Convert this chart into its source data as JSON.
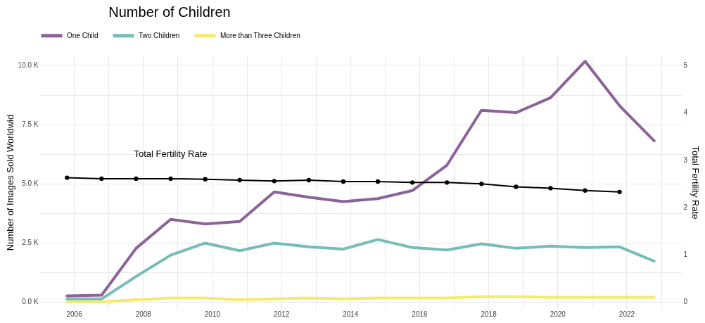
{
  "chart_data": {
    "type": "line",
    "legend_title": "Number of Children",
    "ylabel": "Number of Images Sold Worldwid",
    "y2label": "Total Fertility Rate",
    "x": [
      2005.8,
      2006.8,
      2007.8,
      2008.8,
      2009.8,
      2010.8,
      2011.8,
      2012.8,
      2013.8,
      2014.8,
      2015.8,
      2016.8,
      2017.8,
      2018.8,
      2019.8,
      2020.8,
      2021.8,
      2022.8
    ],
    "series": [
      {
        "name": "One Child",
        "color": "#8c6399",
        "values": [
          250,
          280,
          2260,
          3480,
          3290,
          3390,
          4640,
          4420,
          4230,
          4360,
          4700,
          5770,
          8090,
          7990,
          8620,
          10160,
          8280,
          6800
        ]
      },
      {
        "name": "Two Children",
        "color": "#75bdb6",
        "values": [
          120,
          120,
          1070,
          1970,
          2480,
          2160,
          2480,
          2320,
          2230,
          2630,
          2290,
          2190,
          2450,
          2260,
          2350,
          2290,
          2320,
          1720
        ]
      },
      {
        "name": "More than Three Children",
        "color": "#f5ea6e",
        "values": [
          0,
          0,
          90,
          160,
          160,
          90,
          120,
          160,
          120,
          160,
          160,
          160,
          220,
          220,
          190,
          190,
          190,
          190
        ]
      },
      {
        "name": "Total Fertility Rate",
        "type": "line",
        "axis": "y2",
        "color": "#000000",
        "marker": "circle",
        "x": [
          2005.8,
          2006.8,
          2007.8,
          2008.8,
          2009.8,
          2010.8,
          2011.8,
          2012.8,
          2013.8,
          2014.8,
          2015.8,
          2016.8,
          2017.8,
          2018.8,
          2019.8,
          2020.8,
          2021.8
        ],
        "values": [
          2.62,
          2.6,
          2.6,
          2.6,
          2.59,
          2.57,
          2.55,
          2.57,
          2.54,
          2.54,
          2.52,
          2.52,
          2.49,
          2.43,
          2.4,
          2.35,
          2.32
        ]
      }
    ],
    "xlim": [
      2005,
      2023.6
    ],
    "xticks": [
      2006,
      {
        "value": 2007,
        "label": null
      },
      2008,
      {
        "value": 2009,
        "label": null
      },
      2010,
      {
        "value": 2011,
        "label": null
      },
      2012,
      {
        "value": 2013,
        "label": null
      },
      2014,
      {
        "value": 2015,
        "label": null
      },
      2016,
      {
        "value": 2017,
        "label": null
      },
      2018,
      {
        "value": 2019,
        "label": null
      },
      2020,
      {
        "value": 2021,
        "label": null
      },
      2022,
      {
        "value": 2023,
        "label": null
      }
    ],
    "ylim": [
      -300,
      10400
    ],
    "yticks": [
      {
        "value": 0,
        "label": "0.0 K"
      },
      {
        "value": 1250,
        "label": null
      },
      {
        "value": 2500,
        "label": "2.5 K"
      },
      {
        "value": 3750,
        "label": null
      },
      {
        "value": 5000,
        "label": "5.0 K"
      },
      {
        "value": 6250,
        "label": null
      },
      {
        "value": 7500,
        "label": "7.5 K"
      },
      {
        "value": 8750,
        "label": null
      },
      {
        "value": 10000,
        "label": "10.0 K"
      }
    ],
    "y2lim": [
      -0.15,
      5.2
    ],
    "y2ticks": [
      0,
      1,
      2,
      3,
      4,
      5
    ],
    "grid": true,
    "legend": "top"
  }
}
